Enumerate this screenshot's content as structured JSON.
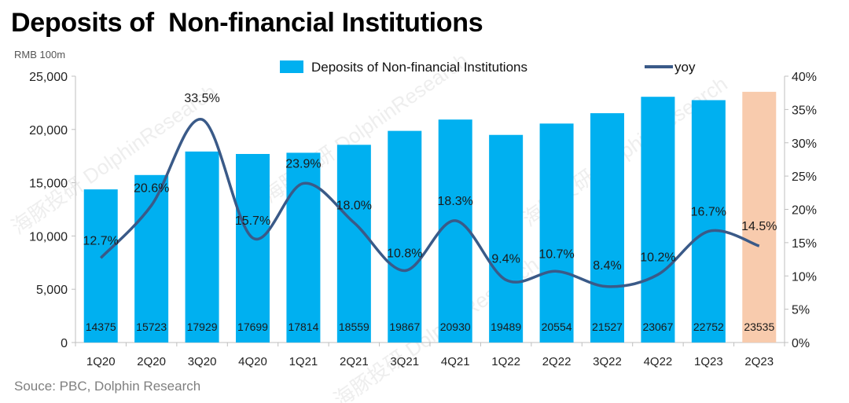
{
  "title": "Deposits of  Non-financial Institutions",
  "unit": "RMB 100m",
  "source": "Souce: PBC, Dolphin Research",
  "watermark": "海豚投研 DolphinResearch",
  "colors": {
    "bar": "#00B0F0",
    "bar_highlight": "#F8CBAD",
    "line": "#3A5A88",
    "axis": "#BFBFBF"
  },
  "chart_data": {
    "type": "bar",
    "categories": [
      "1Q20",
      "2Q20",
      "3Q20",
      "4Q20",
      "1Q21",
      "2Q21",
      "3Q21",
      "4Q21",
      "1Q22",
      "2Q22",
      "3Q22",
      "4Q22",
      "1Q23",
      "2Q23"
    ],
    "series": [
      {
        "name": "Deposits of  Non-financial Institutions",
        "type": "bar",
        "values": [
          14375,
          15723,
          17929,
          17699,
          17814,
          18559,
          19867,
          20930,
          19489,
          20554,
          21527,
          23067,
          22752,
          23535
        ],
        "labels": [
          "14375",
          "15723",
          "17929",
          "17699",
          "17814",
          "18559",
          "19867",
          "20930",
          "19489",
          "20554",
          "21527",
          "23067",
          "22752",
          "23535"
        ],
        "highlight_index": 13
      },
      {
        "name": "yoy",
        "type": "line",
        "axis": "right",
        "values": [
          12.7,
          20.6,
          33.5,
          15.7,
          23.9,
          18.0,
          10.8,
          18.3,
          9.4,
          10.7,
          8.4,
          10.2,
          16.7,
          14.5
        ],
        "labels": [
          "12.7%",
          "20.6%",
          "33.5%",
          "15.7%",
          "23.9%",
          "18.0%",
          "10.8%",
          "18.3%",
          "9.4%",
          "10.7%",
          "8.4%",
          "10.2%",
          "16.7%",
          "14.5%"
        ]
      }
    ],
    "ylim": [
      0,
      25000
    ],
    "yticks": [
      0,
      5000,
      10000,
      15000,
      20000,
      25000
    ],
    "ytick_labels": [
      "0",
      "5,000",
      "10,000",
      "15,000",
      "20,000",
      "25,000"
    ],
    "y2lim": [
      0,
      40
    ],
    "y2ticks": [
      0,
      5,
      10,
      15,
      20,
      25,
      30,
      35,
      40
    ],
    "y2tick_labels": [
      "0%",
      "5%",
      "10%",
      "15%",
      "20%",
      "25%",
      "30%",
      "35%",
      "40%"
    ],
    "legend": "top",
    "grid": false
  }
}
